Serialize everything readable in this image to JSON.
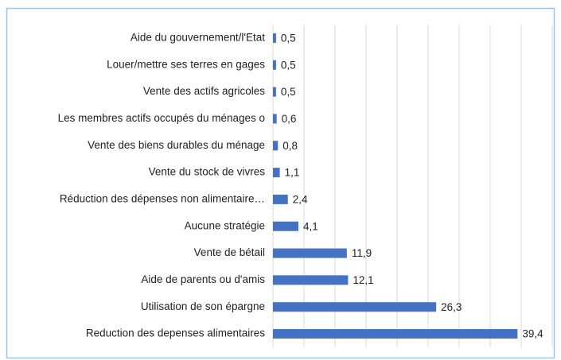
{
  "chart_data": {
    "type": "bar",
    "orientation": "horizontal",
    "categories": [
      "Aide du gouvernement/l'Etat",
      "Louer/mettre ses terres en gages",
      "Vente des actifs agricoles",
      "Les membres actifs occupés du ménages o",
      "Vente des biens durables du ménage",
      "Vente du stock de vivres",
      "Réduction des dépenses non alimentaire…",
      "Aucune stratégie",
      "Vente de bétail",
      "Aide de parents ou d'amis",
      "Utilisation de son épargne",
      "Reduction des depenses alimentaires"
    ],
    "values": [
      0.5,
      0.5,
      0.5,
      0.6,
      0.8,
      1.1,
      2.4,
      4.1,
      11.9,
      12.1,
      26.3,
      39.4
    ],
    "value_labels": [
      "0,5",
      "0,5",
      "0,5",
      "0,6",
      "0,8",
      "1,1",
      "2,4",
      "4,1",
      "11,9",
      "12,1",
      "26,3",
      "39,4"
    ],
    "color": "#4472c4",
    "xlim": [
      0,
      45
    ],
    "xticks": [
      0,
      5,
      10,
      15,
      20,
      25,
      30,
      35,
      40,
      45
    ],
    "grid": true
  }
}
